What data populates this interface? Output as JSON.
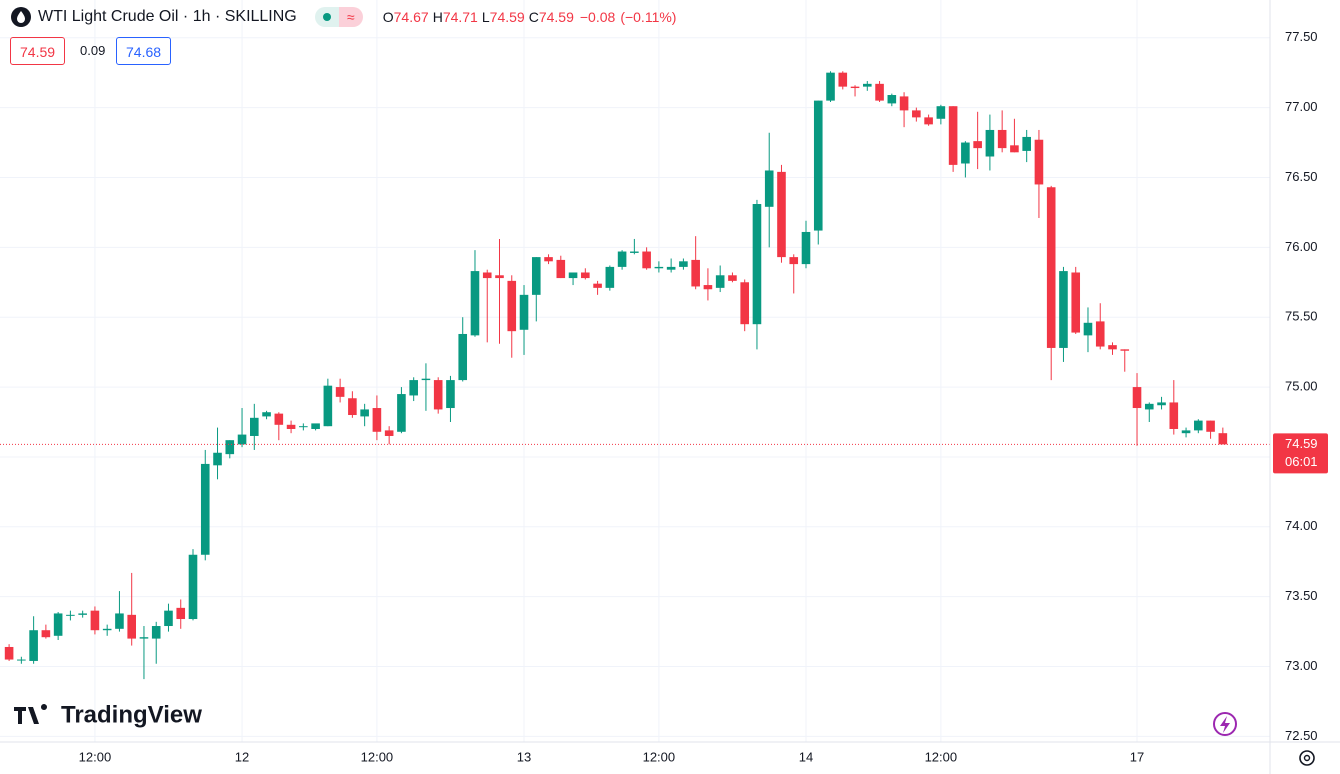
{
  "header": {
    "symbol": "WTI Light Crude Oil · 1h · SKILLING",
    "open_label": "O",
    "open": "74.67",
    "high_label": "H",
    "high": "74.71",
    "low_label": "L",
    "low": "74.59",
    "close_label": "C",
    "close": "74.59",
    "change": "−0.08",
    "change_pct": "(−0.11%)"
  },
  "order_panel": {
    "bid": "74.59",
    "spread": "0.09",
    "ask": "74.68"
  },
  "watermark": "TradingView",
  "chart_data": {
    "type": "candlestick",
    "categories": [
      null,
      null,
      null,
      null,
      null,
      null,
      null,
      "12:00",
      null,
      null,
      null,
      null,
      null,
      null,
      null,
      null,
      null,
      null,
      null,
      "12",
      null,
      null,
      null,
      null,
      null,
      null,
      null,
      null,
      null,
      null,
      "12:00",
      null,
      null,
      null,
      null,
      null,
      null,
      null,
      null,
      null,
      null,
      null,
      "13",
      null,
      null,
      null,
      null,
      null,
      null,
      null,
      null,
      null,
      null,
      "12:00",
      null,
      null,
      null,
      null,
      null,
      null,
      null,
      null,
      null,
      null,
      null,
      "14",
      null,
      null,
      null,
      null,
      null,
      null,
      null,
      null,
      null,
      null,
      "12:00",
      null,
      null,
      null,
      null,
      null,
      null,
      null,
      null,
      null,
      null,
      null,
      null,
      null,
      null,
      null,
      "17",
      null,
      null,
      null,
      null,
      null,
      null,
      null
    ],
    "open": [
      73.14,
      73.05,
      73.04,
      73.26,
      73.22,
      73.37,
      73.37,
      73.4,
      73.26,
      73.27,
      73.37,
      73.2,
      73.2,
      73.29,
      73.42,
      73.34,
      73.8,
      74.44,
      74.52,
      74.59,
      74.65,
      74.79,
      74.81,
      74.73,
      74.72,
      74.7,
      74.72,
      75.0,
      74.92,
      74.79,
      74.85,
      74.69,
      74.68,
      74.94,
      75.05,
      75.05,
      74.85,
      75.05,
      75.37,
      75.82,
      75.8,
      75.76,
      75.41,
      75.66,
      75.93,
      75.91,
      75.78,
      75.82,
      75.74,
      75.71,
      75.86,
      75.96,
      75.97,
      75.85,
      75.84,
      75.86,
      75.91,
      75.73,
      75.71,
      75.8,
      75.75,
      75.45,
      76.29,
      76.54,
      75.93,
      75.88,
      76.12,
      77.05,
      77.25,
      77.15,
      77.15,
      77.17,
      77.03,
      77.08,
      76.98,
      76.93,
      76.92,
      77.01,
      76.6,
      76.76,
      76.65,
      76.84,
      76.73,
      76.69,
      76.77,
      76.43,
      75.28,
      75.82,
      75.37,
      75.47,
      75.3,
      75.27,
      75.0,
      74.84,
      74.87,
      74.89,
      74.67,
      74.69,
      74.76,
      74.67
    ],
    "high": [
      73.16,
      73.07,
      73.36,
      73.3,
      73.39,
      73.4,
      73.4,
      73.43,
      73.3,
      73.54,
      73.67,
      73.29,
      73.32,
      73.45,
      73.48,
      73.84,
      74.55,
      74.71,
      74.62,
      74.85,
      74.88,
      74.83,
      74.82,
      74.76,
      74.74,
      74.73,
      75.06,
      75.06,
      74.97,
      74.88,
      74.94,
      74.72,
      75.0,
      75.07,
      75.17,
      75.07,
      75.08,
      75.5,
      75.98,
      75.84,
      76.06,
      75.8,
      75.73,
      75.93,
      75.95,
      75.94,
      75.82,
      75.85,
      75.76,
      75.87,
      75.98,
      76.06,
      76.0,
      75.9,
      75.92,
      75.92,
      76.08,
      75.85,
      75.87,
      75.82,
      75.77,
      76.34,
      76.82,
      76.59,
      75.95,
      76.19,
      77.05,
      77.26,
      77.26,
      77.16,
      77.19,
      77.19,
      77.1,
      77.11,
      77.0,
      76.95,
      77.02,
      77.01,
      76.76,
      76.97,
      76.95,
      76.98,
      76.92,
      76.84,
      76.84,
      76.44,
      75.86,
      75.86,
      75.57,
      75.6,
      75.32,
      75.27,
      75.1,
      74.89,
      74.93,
      75.05,
      74.71,
      74.77,
      74.76,
      74.71
    ],
    "low": [
      73.04,
      73.02,
      73.02,
      73.2,
      73.19,
      73.33,
      73.35,
      73.23,
      73.22,
      73.25,
      73.15,
      72.91,
      73.02,
      73.25,
      73.27,
      73.33,
      73.76,
      74.34,
      74.49,
      74.57,
      74.55,
      74.77,
      74.62,
      74.67,
      74.69,
      74.69,
      74.72,
      74.89,
      74.78,
      74.72,
      74.62,
      74.59,
      74.67,
      74.9,
      74.83,
      74.81,
      74.75,
      75.04,
      75.36,
      75.32,
      75.31,
      75.21,
      75.23,
      75.47,
      75.88,
      75.78,
      75.73,
      75.77,
      75.66,
      75.69,
      75.84,
      75.95,
      75.84,
      75.82,
      75.82,
      75.84,
      75.7,
      75.62,
      75.68,
      75.75,
      75.4,
      75.27,
      76.0,
      75.89,
      75.67,
      75.85,
      76.02,
      77.04,
      77.13,
      77.08,
      77.12,
      77.04,
      77.01,
      76.86,
      76.9,
      76.87,
      76.88,
      76.54,
      76.5,
      76.56,
      76.55,
      76.68,
      76.68,
      76.61,
      76.21,
      75.05,
      75.18,
      75.38,
      75.25,
      75.27,
      75.23,
      75.11,
      74.58,
      74.75,
      74.84,
      74.66,
      74.64,
      74.67,
      74.63,
      74.59
    ],
    "close": [
      73.05,
      73.05,
      73.26,
      73.21,
      73.38,
      73.37,
      73.38,
      73.26,
      73.27,
      73.38,
      73.2,
      73.21,
      73.29,
      73.4,
      73.34,
      73.8,
      74.45,
      74.53,
      74.62,
      74.66,
      74.78,
      74.82,
      74.73,
      74.7,
      74.72,
      74.74,
      75.01,
      74.93,
      74.8,
      74.84,
      74.68,
      74.65,
      74.95,
      75.05,
      75.06,
      74.84,
      75.05,
      75.38,
      75.83,
      75.78,
      75.78,
      75.4,
      75.66,
      75.93,
      75.9,
      75.78,
      75.82,
      75.78,
      75.71,
      75.86,
      75.97,
      75.97,
      75.85,
      75.86,
      75.86,
      75.9,
      75.72,
      75.7,
      75.8,
      75.76,
      75.45,
      76.31,
      76.55,
      75.93,
      75.88,
      76.11,
      77.05,
      77.25,
      77.15,
      77.14,
      77.17,
      77.05,
      77.09,
      76.98,
      76.93,
      76.88,
      77.01,
      76.59,
      76.75,
      76.71,
      76.84,
      76.71,
      76.68,
      76.79,
      76.45,
      75.28,
      75.83,
      75.39,
      75.46,
      75.29,
      75.27,
      75.26,
      74.85,
      74.88,
      74.89,
      74.7,
      74.69,
      74.76,
      74.68,
      74.59
    ],
    "ylim": [
      72.46,
      77.77
    ],
    "yticks": [
      {
        "value": 72.5,
        "label": "72.50"
      },
      {
        "value": 73,
        "label": "73.00"
      },
      {
        "value": 73.5,
        "label": "73.50"
      },
      {
        "value": 74,
        "label": "74.00"
      },
      {
        "value": 74.5,
        "label": "74.50"
      },
      {
        "value": 75,
        "label": "75.00"
      },
      {
        "value": 75.5,
        "label": "75.50"
      },
      {
        "value": 76,
        "label": "76.00"
      },
      {
        "value": 76.5,
        "label": "76.50"
      },
      {
        "value": 77,
        "label": "77.00"
      },
      {
        "value": 77.5,
        "label": "77.50"
      }
    ],
    "grid": true,
    "up_color": "#089981",
    "down_color": "#f23645",
    "last_price": 74.59,
    "countdown": "06:01"
  }
}
